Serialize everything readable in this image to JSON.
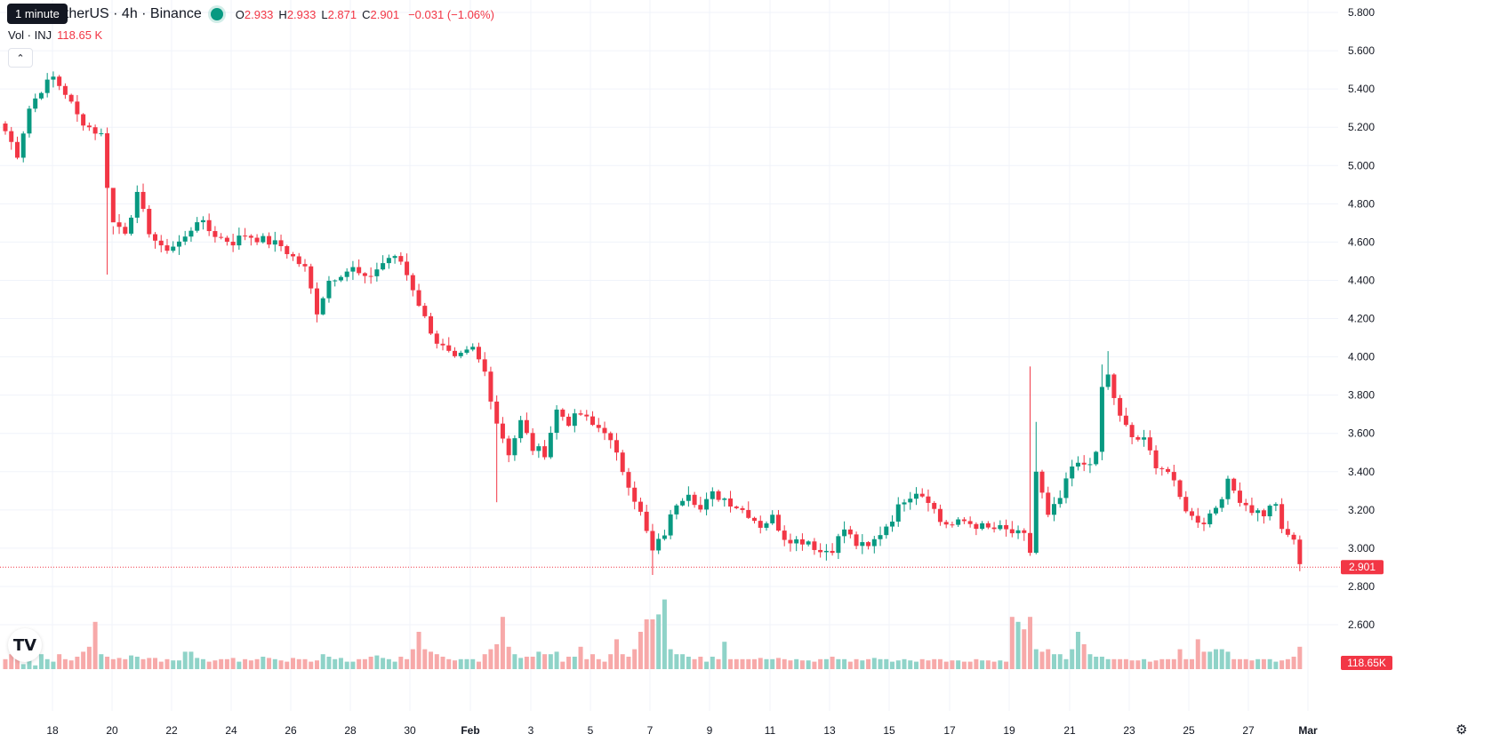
{
  "header": {
    "tooltip": "1 minute",
    "symbol_line": "etherUS · 4h · Binance",
    "ohlc": [
      {
        "k": "O",
        "v": "2.933"
      },
      {
        "k": "H",
        "v": "2.933"
      },
      {
        "k": "L",
        "v": "2.871"
      },
      {
        "k": "C",
        "v": "2.901"
      },
      {
        "k": "",
        "v": "−0.031 (−1.06%)"
      }
    ],
    "vol_label": "Vol · INJ",
    "vol_value": "118.65 K"
  },
  "colors": {
    "up": "#089981",
    "down": "#f23645",
    "up_vol": "#8fd3c8",
    "down_vol": "#f7a9a9",
    "grid": "#f0f3fa",
    "text": "#131722"
  },
  "icons": {
    "collapse": "chevron-up-icon",
    "logo": "tradingview-logo-icon",
    "settings": "gear-icon"
  },
  "chart_data": {
    "type": "candlestick",
    "title": "",
    "interval": "4h",
    "ylim": [
      2.38,
      5.82
    ],
    "y_ticks": [
      "5.800",
      "5.600",
      "5.400",
      "5.200",
      "5.000",
      "4.800",
      "4.600",
      "4.400",
      "4.200",
      "4.000",
      "3.800",
      "3.600",
      "3.400",
      "3.200",
      "3.000",
      "2.800",
      "2.600"
    ],
    "x_ticks": [
      "18",
      "20",
      "22",
      "24",
      "26",
      "28",
      "30",
      "Feb",
      "3",
      "5",
      "7",
      "9",
      "11",
      "13",
      "15",
      "17",
      "19",
      "21",
      "23",
      "25",
      "27",
      "Mar"
    ],
    "first_candle": "Jan 17 00:00",
    "last_price": "2.901",
    "last_volume": "118.65K",
    "anchors": [
      [
        0,
        5.18
      ],
      [
        2,
        5.06
      ],
      [
        4,
        5.3
      ],
      [
        6,
        5.4
      ],
      [
        8,
        5.46
      ],
      [
        10,
        5.38
      ],
      [
        12,
        5.26
      ],
      [
        14,
        5.2
      ],
      [
        16,
        5.16
      ],
      [
        17,
        4.9
      ],
      [
        18,
        4.7
      ],
      [
        20,
        4.66
      ],
      [
        22,
        4.84
      ],
      [
        24,
        4.66
      ],
      [
        26,
        4.56
      ],
      [
        28,
        4.58
      ],
      [
        30,
        4.62
      ],
      [
        32,
        4.72
      ],
      [
        34,
        4.66
      ],
      [
        36,
        4.62
      ],
      [
        38,
        4.6
      ],
      [
        40,
        4.64
      ],
      [
        42,
        4.62
      ],
      [
        46,
        4.58
      ],
      [
        48,
        4.52
      ],
      [
        50,
        4.46
      ],
      [
        52,
        4.24
      ],
      [
        54,
        4.4
      ],
      [
        56,
        4.44
      ],
      [
        58,
        4.46
      ],
      [
        60,
        4.4
      ],
      [
        62,
        4.46
      ],
      [
        64,
        4.52
      ],
      [
        66,
        4.5
      ],
      [
        68,
        4.36
      ],
      [
        70,
        4.2
      ],
      [
        72,
        4.08
      ],
      [
        75,
        3.98
      ],
      [
        78,
        4.04
      ],
      [
        80,
        3.92
      ],
      [
        82,
        3.66
      ],
      [
        84,
        3.5
      ],
      [
        86,
        3.66
      ],
      [
        88,
        3.52
      ],
      [
        90,
        3.5
      ],
      [
        92,
        3.72
      ],
      [
        94,
        3.66
      ],
      [
        96,
        3.7
      ],
      [
        98,
        3.64
      ],
      [
        100,
        3.62
      ],
      [
        102,
        3.48
      ],
      [
        104,
        3.34
      ],
      [
        106,
        3.18
      ],
      [
        108,
        2.98
      ],
      [
        110,
        3.08
      ],
      [
        112,
        3.24
      ],
      [
        114,
        3.3
      ],
      [
        116,
        3.2
      ],
      [
        118,
        3.28
      ],
      [
        120,
        3.26
      ],
      [
        122,
        3.22
      ],
      [
        124,
        3.18
      ],
      [
        126,
        3.12
      ],
      [
        128,
        3.16
      ],
      [
        130,
        3.06
      ],
      [
        132,
        3.04
      ],
      [
        134,
        3.04
      ],
      [
        136,
        2.98
      ],
      [
        138,
        3.0
      ],
      [
        140,
        3.1
      ],
      [
        142,
        3.02
      ],
      [
        144,
        3.0
      ],
      [
        146,
        3.08
      ],
      [
        148,
        3.16
      ],
      [
        150,
        3.26
      ],
      [
        152,
        3.3
      ],
      [
        154,
        3.26
      ],
      [
        156,
        3.14
      ],
      [
        158,
        3.12
      ],
      [
        160,
        3.14
      ],
      [
        162,
        3.12
      ],
      [
        164,
        3.1
      ],
      [
        166,
        3.1
      ],
      [
        168,
        3.08
      ],
      [
        170,
        3.06
      ],
      [
        171,
        2.98
      ],
      [
        172,
        3.4
      ],
      [
        174,
        3.16
      ],
      [
        176,
        3.26
      ],
      [
        178,
        3.42
      ],
      [
        180,
        3.44
      ],
      [
        182,
        3.48
      ],
      [
        183,
        3.84
      ],
      [
        184,
        3.9
      ],
      [
        186,
        3.68
      ],
      [
        188,
        3.58
      ],
      [
        190,
        3.56
      ],
      [
        192,
        3.44
      ],
      [
        194,
        3.4
      ],
      [
        196,
        3.26
      ],
      [
        198,
        3.16
      ],
      [
        200,
        3.14
      ],
      [
        202,
        3.22
      ],
      [
        204,
        3.34
      ],
      [
        206,
        3.26
      ],
      [
        208,
        3.2
      ],
      [
        210,
        3.18
      ],
      [
        212,
        3.24
      ],
      [
        213,
        3.08
      ],
      [
        215,
        3.05
      ],
      [
        216,
        2.9
      ]
    ],
    "spikes": [
      [
        17,
        4.43,
        null
      ],
      [
        18,
        null,
        4.64
      ],
      [
        82,
        3.24,
        null
      ],
      [
        108,
        2.86,
        null
      ],
      [
        171,
        2.96,
        3.95
      ],
      [
        172,
        null,
        3.66
      ],
      [
        184,
        null,
        4.03
      ],
      [
        183,
        null,
        3.96
      ],
      [
        140,
        null,
        3.14
      ],
      [
        52,
        4.18,
        null
      ]
    ],
    "volume_series": {
      "name": "Vol · INJ",
      "values_k": [
        40,
        60,
        70,
        20,
        60,
        15,
        60,
        40,
        30,
        60,
        40,
        35,
        50,
        70,
        90,
        190,
        60,
        50,
        40,
        45,
        40,
        55,
        50,
        40,
        45,
        45,
        30,
        40,
        35,
        35,
        70,
        70,
        45,
        40,
        30,
        35,
        40,
        40,
        45,
        30,
        40,
        35,
        40,
        50,
        45,
        40,
        35,
        30,
        45,
        40,
        40,
        30,
        35,
        60,
        50,
        40,
        45,
        30,
        30,
        40,
        40,
        50,
        55,
        45,
        40,
        30,
        50,
        40,
        80,
        150,
        80,
        70,
        60,
        50,
        40,
        35,
        40,
        40,
        40,
        30,
        60,
        80,
        100,
        210,
        90,
        60,
        45,
        50,
        50,
        70,
        60,
        60,
        70,
        30,
        50,
        50,
        90,
        40,
        60,
        40,
        30,
        60,
        120,
        60,
        50,
        80,
        150,
        200,
        200,
        220,
        280,
        80,
        60,
        60,
        50,
        40,
        50,
        30,
        50,
        40,
        110,
        40,
        40,
        40,
        40,
        40,
        45,
        40,
        40,
        45,
        40,
        35,
        40,
        35,
        35,
        30,
        40,
        40,
        50,
        40,
        40,
        30,
        40,
        35,
        40,
        45,
        40,
        40,
        30,
        35,
        40,
        35,
        30,
        40,
        35,
        40,
        40,
        30,
        35,
        35,
        30,
        30,
        40,
        35,
        35,
        30,
        35,
        30,
        210,
        190,
        160,
        210,
        80,
        70,
        80,
        60,
        60,
        40,
        80,
        150,
        100,
        60,
        50,
        50,
        40,
        40,
        40,
        40,
        35,
        35,
        40,
        30,
        35,
        40,
        40,
        40,
        80,
        40,
        40,
        120,
        70,
        70,
        80,
        80,
        70,
        40,
        40,
        40,
        35,
        40,
        40,
        40,
        30,
        35,
        40,
        50,
        90,
        40,
        40
      ],
      "last_value": "118.65K"
    }
  }
}
